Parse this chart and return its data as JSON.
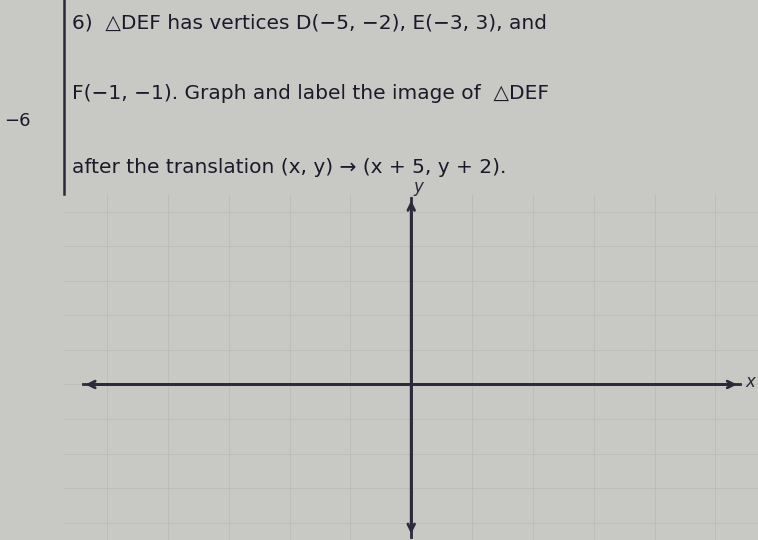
{
  "title_lines": [
    "6)  △DEF has vertices D(−5, −2), E(−3, 3), and",
    "F(−1, −1). Graph and label the image of  △DEF",
    "after the translation (x, y) → (x + 5, y + 2)."
  ],
  "minus6_label": "−6",
  "background_color": "#c8c8c4",
  "paper_color": "#dcdcd8",
  "graph_bg": "#d4d4d0",
  "axis_color": "#2a2a3a",
  "grid_color": "#b8b8b4",
  "text_color": "#1a1a2a",
  "xlabel": "x",
  "ylabel": "y",
  "title_fontsize": 14.5,
  "axis_label_fontsize": 12,
  "margin_line_color": "#2a2a3a",
  "graph_xlim_data": [
    -5,
    5
  ],
  "graph_ylim_data": [
    -4,
    5
  ]
}
